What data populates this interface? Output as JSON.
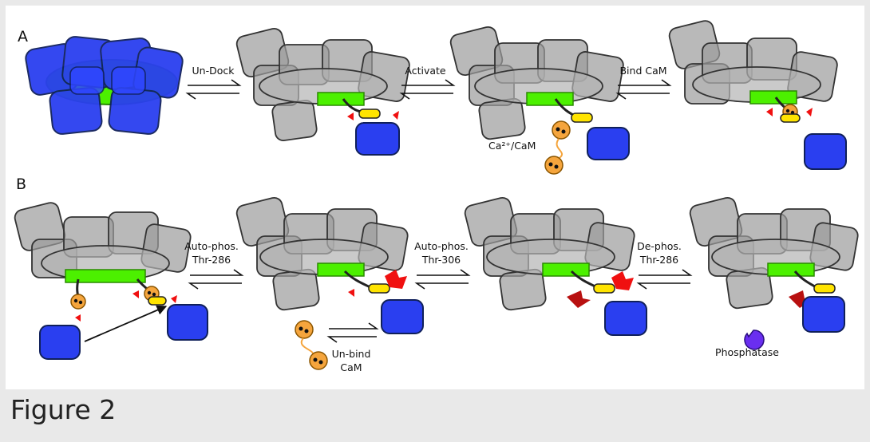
{
  "panels": [
    {
      "letter": "A",
      "steps": [
        {
          "label_lines": [
            "Un-Dock"
          ]
        },
        {
          "label_lines": [
            "Activate"
          ]
        },
        {
          "label_lines": [
            "Bind CaM"
          ]
        }
      ],
      "annotations": [
        "Ca²⁺/CaM"
      ]
    },
    {
      "letter": "B",
      "steps": [
        {
          "label_lines": [
            "Auto-phos.",
            "Thr-286"
          ]
        },
        {
          "label_lines": [
            "Auto-phos.",
            "Thr-306"
          ]
        },
        {
          "label_lines": [
            "De-phos.",
            "Thr-286"
          ]
        }
      ],
      "annotations": [
        "Un-bind",
        "CaM",
        "Phosphatase"
      ]
    }
  ],
  "caption": "Figure 2",
  "colors": {
    "kinase_blue": "#2a3ff0",
    "hub_green": "#4cf000",
    "hub_gray": "#9b9b9b",
    "cam_orange": "#f5a53d",
    "linker_yellow": "#ffe400",
    "phospho_red": "#f01010",
    "dephospho_darkred": "#b81010",
    "phosphatase_purple": "#6a2ef0"
  }
}
